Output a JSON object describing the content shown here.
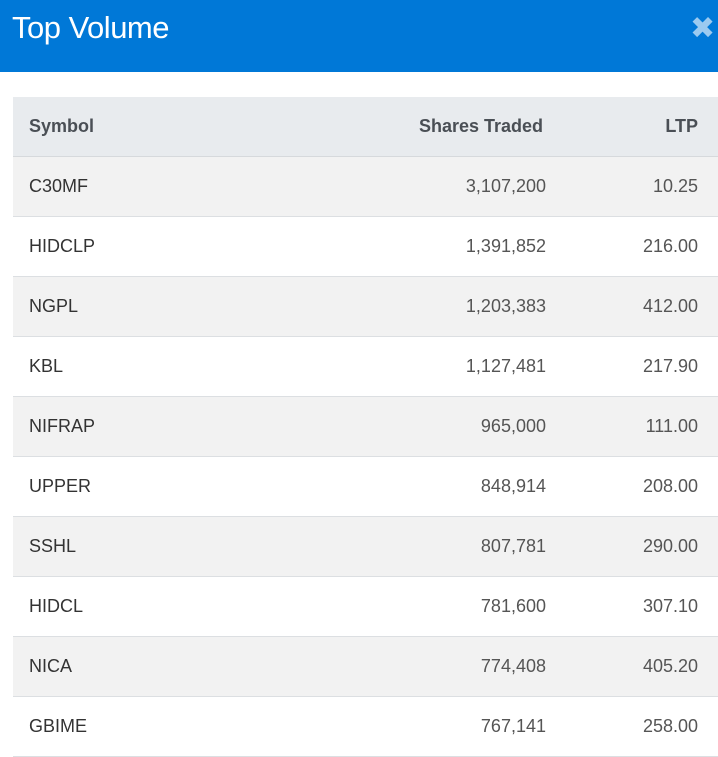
{
  "header": {
    "title": "Top Volume",
    "close_icon": "close-icon",
    "background": "#0078d7"
  },
  "table": {
    "columns": [
      "Symbol",
      "Shares Traded",
      "LTP"
    ],
    "rows": [
      [
        "C30MF",
        "3,107,200",
        "10.25"
      ],
      [
        "HIDCLP",
        "1,391,852",
        "216.00"
      ],
      [
        "NGPL",
        "1,203,383",
        "412.00"
      ],
      [
        "KBL",
        "1,127,481",
        "217.90"
      ],
      [
        "NIFRAP",
        "965,000",
        "111.00"
      ],
      [
        "UPPER",
        "848,914",
        "208.00"
      ],
      [
        "SSHL",
        "807,781",
        "290.00"
      ],
      [
        "HIDCL",
        "781,600",
        "307.10"
      ],
      [
        "NICA",
        "774,408",
        "405.20"
      ],
      [
        "GBIME",
        "767,141",
        "258.00"
      ]
    ]
  }
}
